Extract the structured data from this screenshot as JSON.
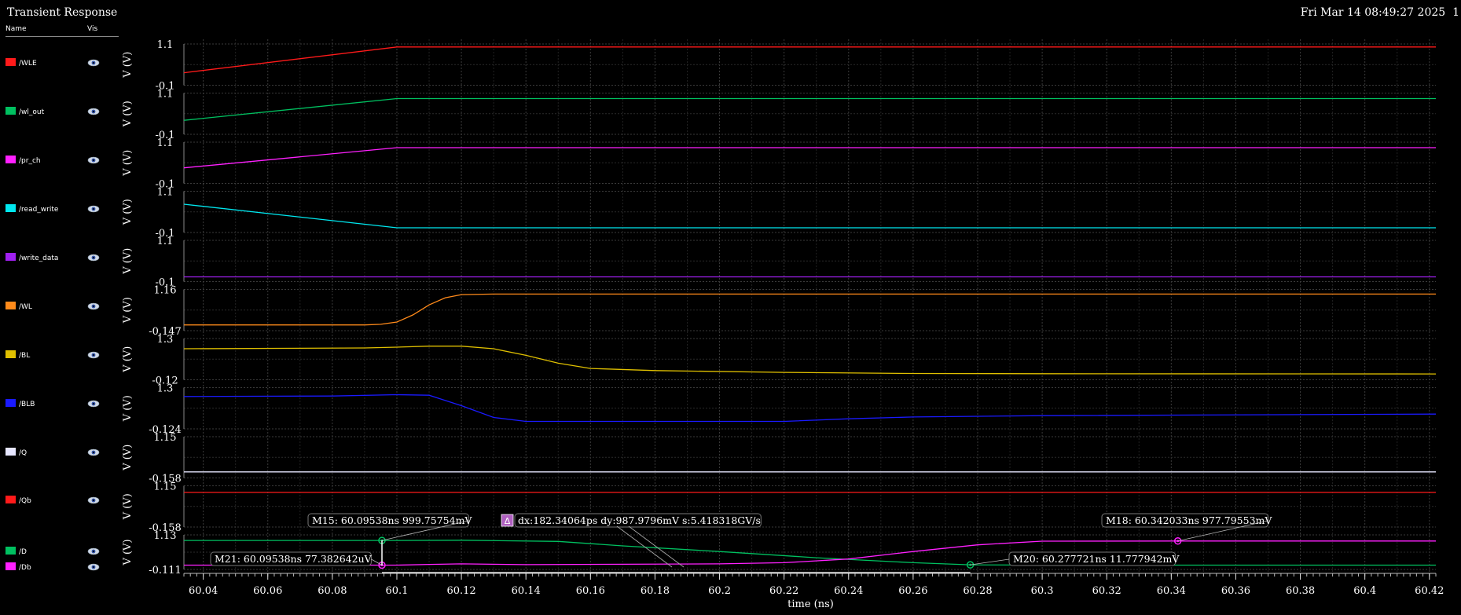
{
  "window": {
    "title": "Transient Response",
    "datetime": "Fri Mar 14 08:49:27 2025",
    "page_number": "1"
  },
  "legend": {
    "name_header": "Name",
    "vis_header": "Vis"
  },
  "chart_data": {
    "type": "line",
    "xlabel": "time (ns)",
    "xlim": [
      60.034,
      60.422
    ],
    "xticks": [
      "60.04",
      "60.06",
      "60.08",
      "60.1",
      "60.12",
      "60.14",
      "60.16",
      "60.18",
      "60.2",
      "60.22",
      "60.24",
      "60.26",
      "60.28",
      "60.3",
      "60.32",
      "60.34",
      "60.36",
      "60.38",
      "60.4",
      "60.42"
    ],
    "series": [
      {
        "name": "/WLE",
        "color": "#ff1a1a",
        "ylabel": "V (V)",
        "ylim": [
          -0.1,
          1.1
        ],
        "yticks": [
          "1.1",
          "-0.1"
        ],
        "points": [
          [
            60.034,
            0.25
          ],
          [
            60.1,
            1.08
          ],
          [
            60.422,
            1.08
          ]
        ]
      },
      {
        "name": "/wl_out",
        "color": "#00c060",
        "ylabel": "V (V)",
        "ylim": [
          -0.1,
          1.1
        ],
        "yticks": [
          "1.1",
          "-0.1"
        ],
        "points": [
          [
            60.034,
            0.3
          ],
          [
            60.1,
            1.0
          ],
          [
            60.422,
            1.0
          ]
        ]
      },
      {
        "name": "/pr_ch",
        "color": "#ff20ff",
        "ylabel": "V (V)",
        "ylim": [
          -0.1,
          1.1
        ],
        "yticks": [
          "1.1",
          "-0.1"
        ],
        "points": [
          [
            60.034,
            0.35
          ],
          [
            60.1,
            1.0
          ],
          [
            60.422,
            1.0
          ]
        ]
      },
      {
        "name": "/read_write",
        "color": "#00e8f0",
        "ylabel": "V (V)",
        "ylim": [
          -0.1,
          1.1
        ],
        "yticks": [
          "1.1",
          "-0.1"
        ],
        "points": [
          [
            60.034,
            0.76
          ],
          [
            60.1,
            0.0
          ],
          [
            60.422,
            0.0
          ]
        ]
      },
      {
        "name": "/write_data",
        "color": "#a020f0",
        "ylabel": "V (V)",
        "ylim": [
          -0.1,
          1.1
        ],
        "yticks": [
          "1.1",
          "-0.1"
        ],
        "points": [
          [
            60.034,
            0.0
          ],
          [
            60.422,
            0.0
          ]
        ]
      },
      {
        "name": "/WL",
        "color": "#ff8a1a",
        "ylabel": "V (V)",
        "ylim": [
          -0.147,
          1.16
        ],
        "yticks": [
          "1.16",
          "-0.147"
        ],
        "points": [
          [
            60.034,
            0.0
          ],
          [
            60.09,
            0.0
          ],
          [
            60.095,
            0.02
          ],
          [
            60.1,
            0.1
          ],
          [
            60.105,
            0.35
          ],
          [
            60.11,
            0.7
          ],
          [
            60.115,
            0.95
          ],
          [
            60.12,
            1.06
          ],
          [
            60.13,
            1.08
          ],
          [
            60.422,
            1.08
          ]
        ]
      },
      {
        "name": "/BL",
        "color": "#e0c000",
        "ylabel": "V (V)",
        "ylim": [
          -0.12,
          1.3
        ],
        "yticks": [
          "1.3",
          "-0.12"
        ],
        "points": [
          [
            60.034,
            1.0
          ],
          [
            60.09,
            1.03
          ],
          [
            60.1,
            1.06
          ],
          [
            60.11,
            1.1
          ],
          [
            60.12,
            1.1
          ],
          [
            60.13,
            1.0
          ],
          [
            60.14,
            0.75
          ],
          [
            60.15,
            0.45
          ],
          [
            60.16,
            0.25
          ],
          [
            60.18,
            0.17
          ],
          [
            60.22,
            0.1
          ],
          [
            60.26,
            0.06
          ],
          [
            60.3,
            0.05
          ],
          [
            60.422,
            0.04
          ]
        ]
      },
      {
        "name": "/BLB",
        "color": "#1a1aff",
        "ylabel": "V (V)",
        "ylim": [
          -0.124,
          1.3
        ],
        "yticks": [
          "1.3",
          "-0.124"
        ],
        "points": [
          [
            60.034,
            1.05
          ],
          [
            60.08,
            1.07
          ],
          [
            60.1,
            1.12
          ],
          [
            60.11,
            1.1
          ],
          [
            60.12,
            0.7
          ],
          [
            60.13,
            0.25
          ],
          [
            60.14,
            0.1
          ],
          [
            60.22,
            0.1
          ],
          [
            60.24,
            0.2
          ],
          [
            60.26,
            0.27
          ],
          [
            60.3,
            0.32
          ],
          [
            60.422,
            0.38
          ]
        ]
      },
      {
        "name": "/Q",
        "color": "#e6e6ff",
        "ylabel": "V (V)",
        "ylim": [
          -0.158,
          1.15
        ],
        "yticks": [
          "1.15",
          "-0.158"
        ],
        "points": [
          [
            60.034,
            0.0
          ],
          [
            60.422,
            0.0
          ]
        ]
      },
      {
        "name": "/Qb",
        "color": "#ff1a1a",
        "ylabel": "V (V)",
        "ylim": [
          -0.158,
          1.15
        ],
        "yticks": [
          "1.15",
          "-0.158"
        ],
        "points": [
          [
            60.034,
            1.0
          ],
          [
            60.422,
            1.0
          ]
        ]
      },
      {
        "name": "/D",
        "color": "#00c060",
        "ylabel": "V (V)",
        "ylim": [
          -0.111,
          1.13
        ],
        "yticks": [
          "1.13",
          "-0.111"
        ],
        "points": [
          [
            60.034,
            1.0
          ],
          [
            60.1,
            1.0
          ],
          [
            60.12,
            1.01
          ],
          [
            60.15,
            0.96
          ],
          [
            60.17,
            0.78
          ],
          [
            60.2,
            0.55
          ],
          [
            60.23,
            0.3
          ],
          [
            60.26,
            0.1
          ],
          [
            60.2777,
            0.0118
          ],
          [
            60.3,
            0.0
          ],
          [
            60.422,
            0.0
          ]
        ]
      },
      {
        "name": "/Db",
        "color": "#ff20ff",
        "ylabel": "V (V)",
        "ylim": [
          -0.111,
          1.13
        ],
        "yticks": [
          "1.13",
          "-0.111"
        ],
        "points": [
          [
            60.034,
            0.0
          ],
          [
            60.0954,
            0.0
          ],
          [
            60.1,
            0.0
          ],
          [
            60.11,
            0.03
          ],
          [
            60.12,
            0.05
          ],
          [
            60.14,
            0.02
          ],
          [
            60.2,
            0.05
          ],
          [
            60.22,
            0.1
          ],
          [
            60.24,
            0.25
          ],
          [
            60.26,
            0.55
          ],
          [
            60.28,
            0.82
          ],
          [
            60.3,
            0.97
          ],
          [
            60.342,
            0.978
          ],
          [
            60.422,
            0.978
          ]
        ]
      }
    ],
    "markers": [
      {
        "label": "M15: 60.09538ns 999.75754mV",
        "series": "/D",
        "x": 60.09538,
        "y": 0.99976,
        "color": "#00c060"
      },
      {
        "label": "M21: 60.09538ns 77.382642uV",
        "series": "/Db",
        "x": 60.09538,
        "y": 7.74e-05,
        "color": "#ff20ff"
      },
      {
        "label": "M18: 60.342033ns 977.79553mV",
        "series": "/Db",
        "x": 60.342033,
        "y": 0.9778,
        "color": "#ff20ff"
      },
      {
        "label": "M20: 60.277721ns 11.777942mV",
        "series": "/D",
        "x": 60.277721,
        "y": 0.011778,
        "color": "#00c060"
      }
    ],
    "delta": {
      "badge": "Δ",
      "label": "dx:182.34064ps dy:987.9796mV s:5.418318GV/s"
    }
  }
}
